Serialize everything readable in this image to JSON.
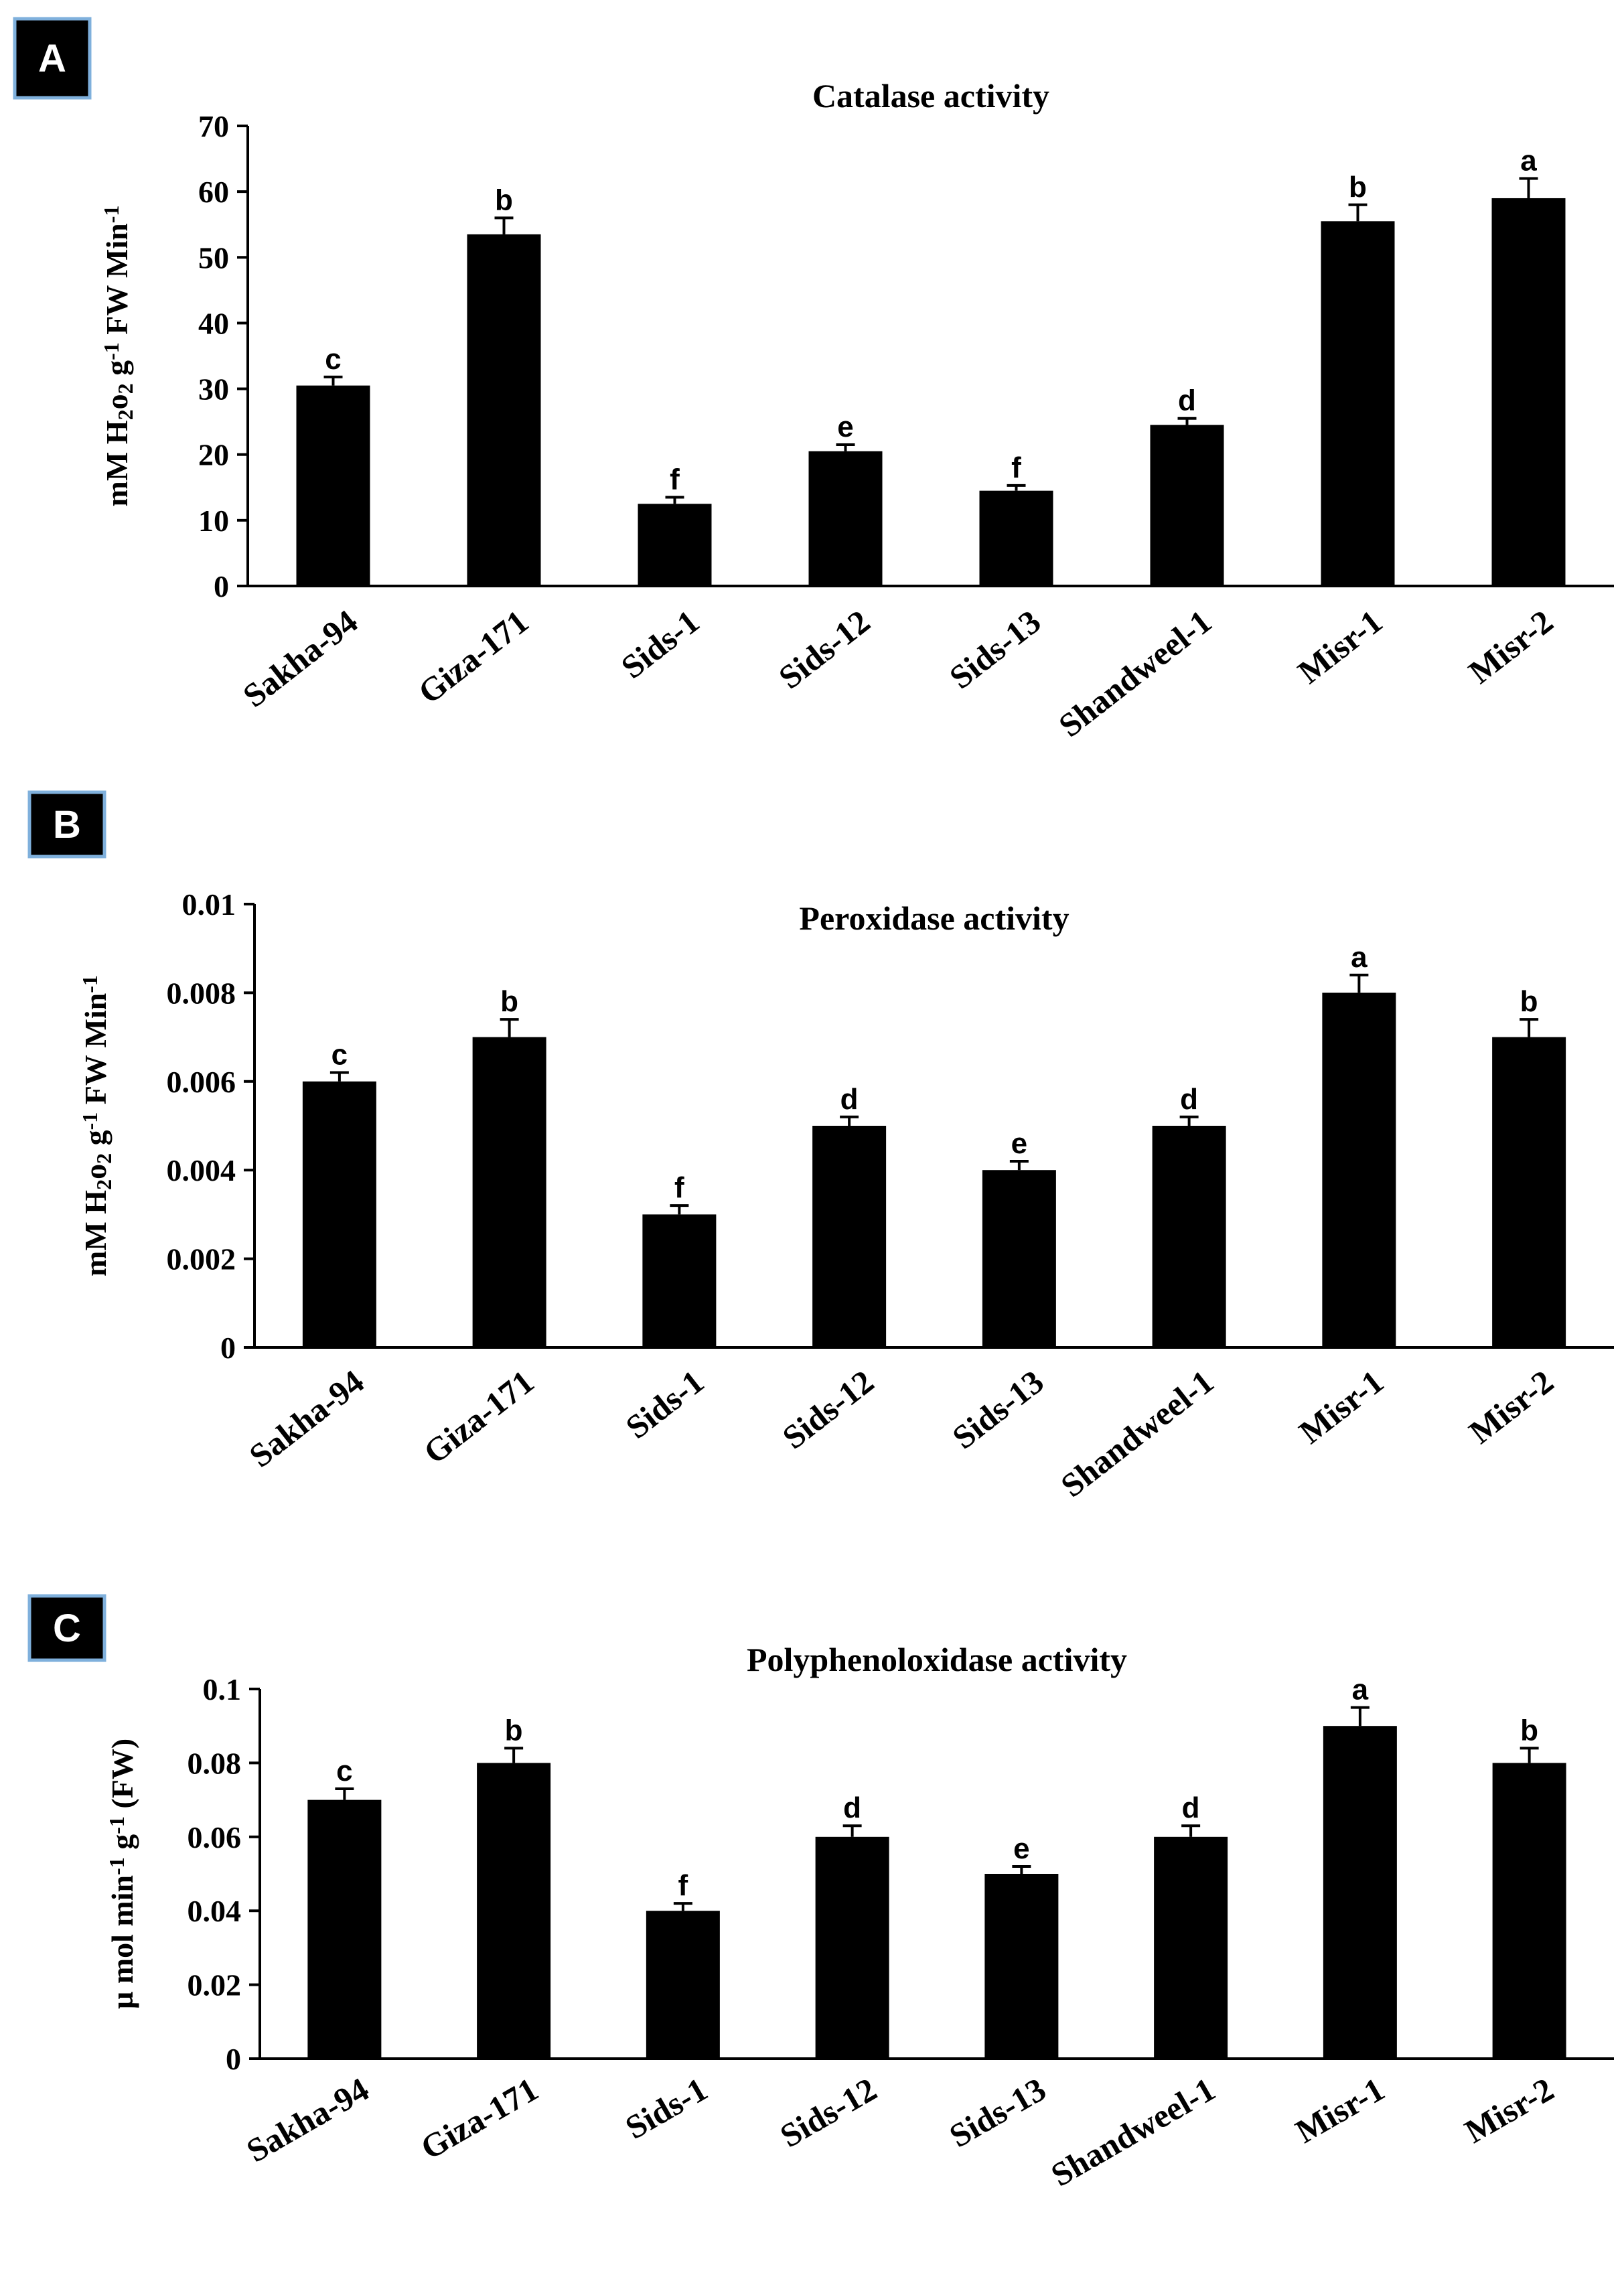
{
  "chart_data": [
    {
      "panel": "A",
      "type": "bar",
      "title": "Catalase activity",
      "ylabel_main": "mM H",
      "ylabel_tail": "o",
      "ylabel_sub2": "2",
      "ylabel_sub3": "2",
      "ylabel_mid": " g",
      "ylabel_sup1": "-1",
      "ylabel_after": " FW Min",
      "ylabel_sup2": "-1",
      "ylim": [
        0,
        70
      ],
      "yticks": [
        "0",
        "10",
        "20",
        "30",
        "40",
        "50",
        "60",
        "70"
      ],
      "categories": [
        "Sakha-94",
        "Giza-171",
        "Sids-1",
        "Sids-12",
        "Sids-13",
        "Shandweel-1",
        "Misr-1",
        "Misr-2"
      ],
      "values": [
        30.5,
        53.5,
        12.5,
        20.5,
        14.5,
        24.5,
        55.5,
        59
      ],
      "errors": [
        1.3,
        2.5,
        1.0,
        1.0,
        0.8,
        1.0,
        2.5,
        3.0
      ],
      "letters": [
        "c",
        "b",
        "f",
        "e",
        "f",
        "d",
        "b",
        "a"
      ]
    },
    {
      "panel": "B",
      "type": "bar",
      "title": "Peroxidase activity",
      "ylabel_main": "mM H",
      "ylabel_tail": "o",
      "ylabel_sub2": "2",
      "ylabel_sub3": "2",
      "ylabel_mid": " g",
      "ylabel_sup1": "-1",
      "ylabel_after": " FW Min",
      "ylabel_sup2": "-1",
      "ylim": [
        0,
        0.01
      ],
      "yticks": [
        "0",
        "0.002",
        "0.004",
        "0.006",
        "0.008",
        "0.01"
      ],
      "categories": [
        "Sakha-94",
        "Giza-171",
        "Sids-1",
        "Sids-12",
        "Sids-13",
        "Shandweel-1",
        "Misr-1",
        "Misr-2"
      ],
      "values": [
        0.006,
        0.007,
        0.003,
        0.005,
        0.004,
        0.005,
        0.008,
        0.007
      ],
      "errors": [
        0.0002,
        0.0004,
        0.0002,
        0.0002,
        0.0002,
        0.0002,
        0.0004,
        0.0004
      ],
      "letters": [
        "c",
        "b",
        "f",
        "d",
        "e",
        "d",
        "a",
        "b"
      ]
    },
    {
      "panel": "C",
      "type": "bar",
      "title": "Polyphenoloxidase  activity",
      "ylabel_main": "µ mol min",
      "ylabel_sup1": "-1",
      "ylabel_mid": " g",
      "ylabel_sup2": "-1",
      "ylabel_after": " (FW)",
      "ylim": [
        0,
        0.1
      ],
      "yticks": [
        "0",
        "0.02",
        "0.04",
        "0.06",
        "0.08",
        "0.1"
      ],
      "categories": [
        "Sakha-94",
        "Giza-171",
        "Sids-1",
        "Sids-12",
        "Sids-13",
        "Shandweel-1",
        "Misr-1",
        "Misr-2"
      ],
      "values": [
        0.07,
        0.08,
        0.04,
        0.06,
        0.05,
        0.06,
        0.09,
        0.08
      ],
      "errors": [
        0.003,
        0.004,
        0.002,
        0.003,
        0.002,
        0.003,
        0.005,
        0.004
      ],
      "letters": [
        "c",
        "b",
        "f",
        "d",
        "e",
        "d",
        "a",
        "b"
      ]
    }
  ]
}
